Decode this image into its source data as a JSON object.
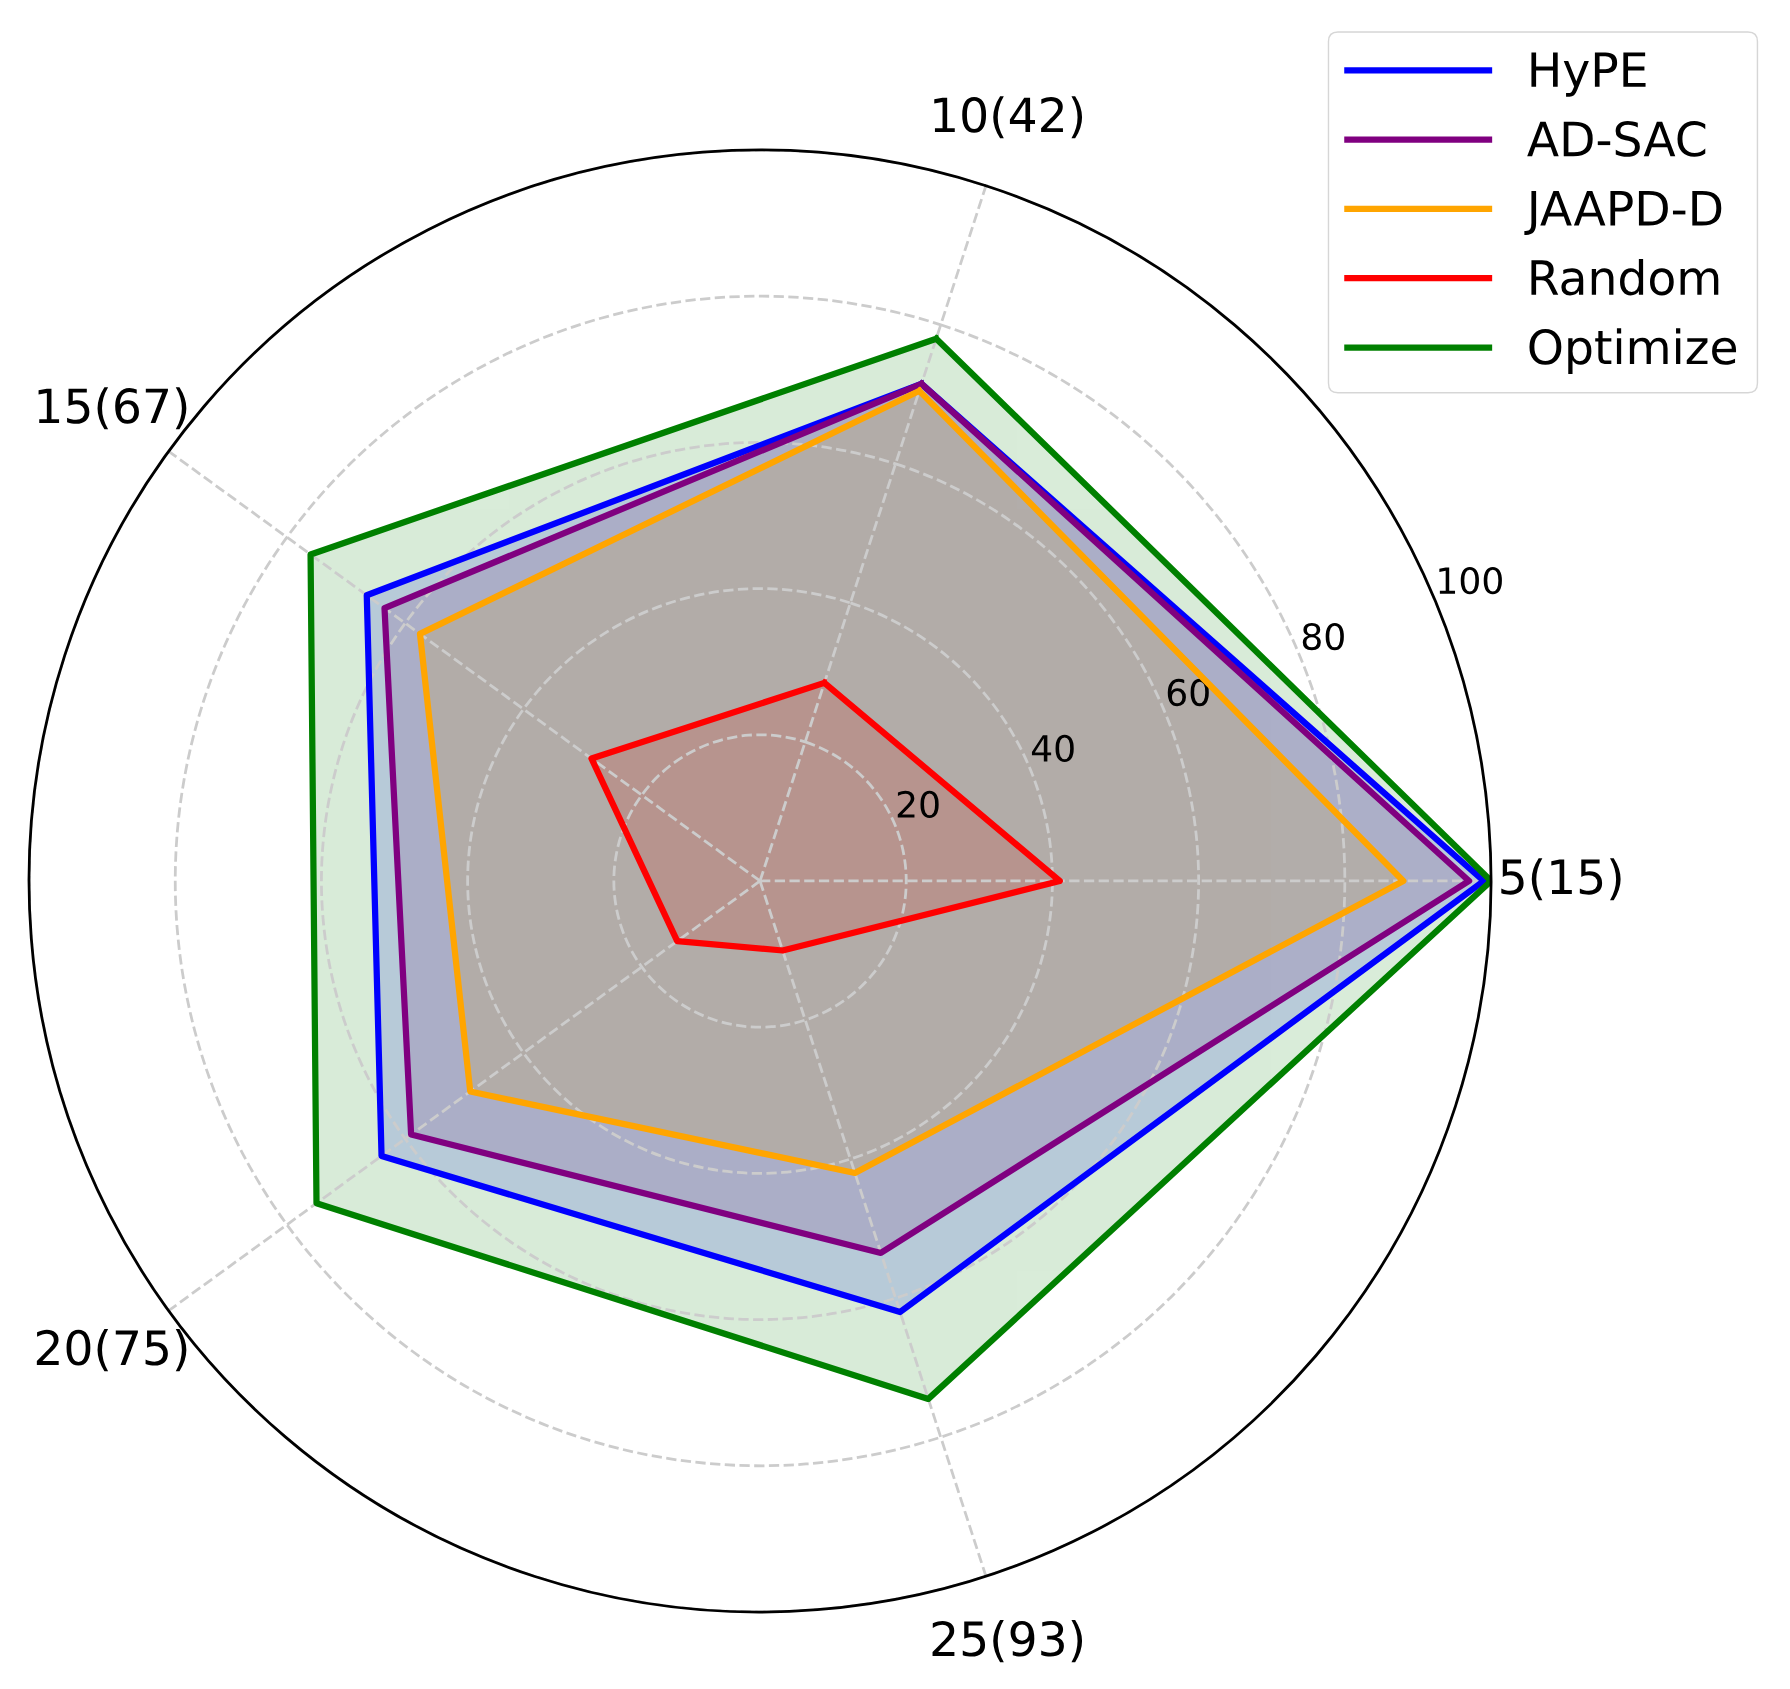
{
  "chart_data": {
    "type": "radar",
    "categories": [
      "10(42)",
      "5(15)",
      "25(93)",
      "20(75)",
      "15(67)"
    ],
    "series": [
      {
        "name": "HyPE",
        "color": "#0000ff",
        "values": [
          71.5,
          99,
          62,
          64,
          66.5
        ]
      },
      {
        "name": "AD-SAC",
        "color": "#800080",
        "values": [
          71.5,
          97,
          53.5,
          59,
          63.5
        ]
      },
      {
        "name": "JAAPD-D",
        "color": "#ffa500",
        "values": [
          70.5,
          88,
          42,
          49,
          57.5
        ]
      },
      {
        "name": "Random",
        "color": "#ff0000",
        "values": [
          28.5,
          41,
          10,
          14,
          28.5
        ]
      },
      {
        "name": "Optimize",
        "color": "#008000",
        "values": [
          78,
          100,
          74.5,
          75,
          76
        ]
      }
    ],
    "ylim": [
      0,
      100
    ],
    "yticks": [
      20,
      40,
      60,
      80,
      100
    ],
    "grid": true,
    "legend": "top right",
    "line_style": "solid",
    "marker": "none"
  }
}
